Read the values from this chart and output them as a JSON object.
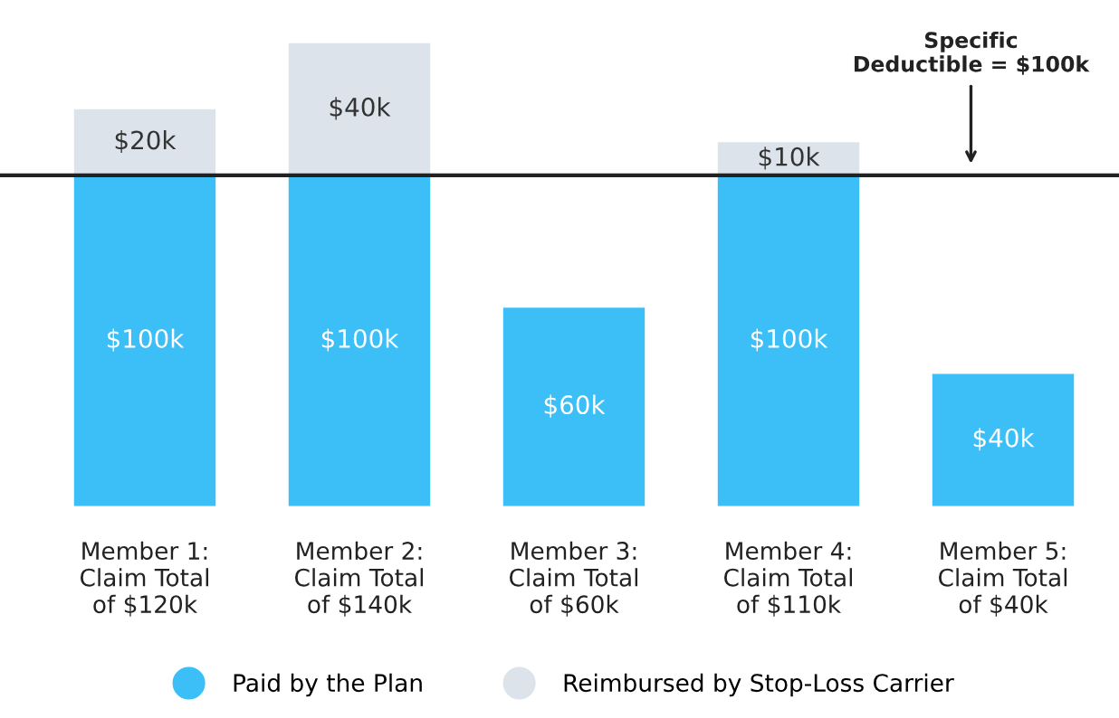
{
  "chart_data": {
    "type": "bar",
    "stacked": true,
    "categories": [
      "Member 1:\nClaim Total\nof $120k",
      "Member 2:\nClaim Total\nof $140k",
      "Member 3:\nClaim Total\nof $60k",
      "Member 4:\nClaim Total\nof $110k",
      "Member 5:\nClaim Total\nof $40k"
    ],
    "series": [
      {
        "name": "Paid by the Plan",
        "color": "#3cbff7",
        "values": [
          100,
          100,
          60,
          100,
          40
        ],
        "value_labels": [
          "$100k",
          "$100k",
          "$60k",
          "$100k",
          "$40k"
        ]
      },
      {
        "name": "Reimbursed by Stop-Loss Carrier",
        "color": "#dde3ea",
        "values": [
          20,
          40,
          null,
          10,
          null
        ],
        "value_labels": [
          "$20k",
          "$40k",
          null,
          "$10k",
          null
        ]
      }
    ],
    "tick_labels": "x",
    "grid": false,
    "legend": "bottom",
    "ref_lines": [
      {
        "axis": "y",
        "value": 100,
        "label": "Specific\nDeductible = $100k",
        "color": "#222222"
      }
    ]
  }
}
